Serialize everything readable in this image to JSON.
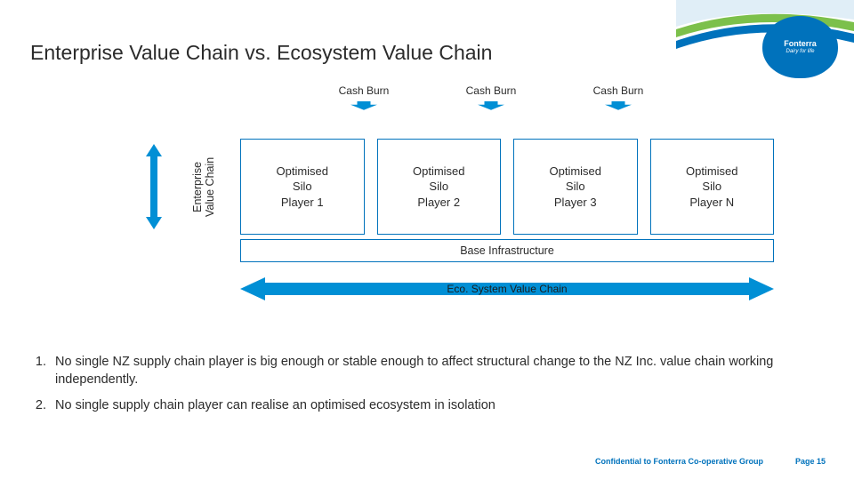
{
  "colors": {
    "brand_blue": "#0072bc",
    "arrow_fill": "#008fd5",
    "text": "#2b2b2b",
    "bg": "#ffffff"
  },
  "header": {
    "title": "Enterprise Value Chain vs. Ecosystem Value Chain",
    "logo_name": "Fonterra",
    "logo_tagline": "Dairy for life"
  },
  "diagram": {
    "cash_burn_label": "Cash Burn",
    "cash_burn_count": 3,
    "evc_axis_label": "Enterprise\nValue Chain",
    "silos": [
      "Optimised Silo Player 1",
      "Optimised Silo Player 2",
      "Optimised Silo Player 3",
      "Optimised Silo Player N"
    ],
    "base_infra_label": "Base Infrastructure",
    "eco_axis_label": "Eco. System Value Chain",
    "silo_border_color": "#0072bc",
    "silo_fontsize": 13,
    "evc_arrow_color": "#008fd5",
    "eco_arrow_color": "#008fd5"
  },
  "bullets": [
    "No single NZ supply chain player is big enough or stable enough to affect structural change to the NZ Inc. value chain working independently.",
    "No single supply chain player can realise an optimised ecosystem in isolation"
  ],
  "footer": {
    "confidential": "Confidential to Fonterra Co-operative Group",
    "page_label": "Page 15"
  }
}
